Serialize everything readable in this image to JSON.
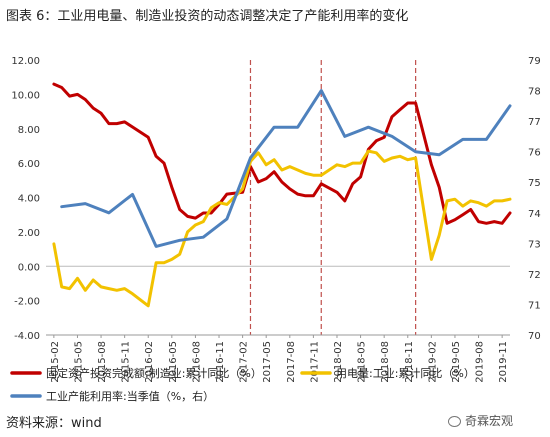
{
  "title": "图表 6：工业用电量、制造业投资的动态调整决定了产能利用率的变化",
  "source": "资料来源：wind",
  "brand": "奇霖宏观",
  "chart_data": {
    "type": "line",
    "x_ticks": [
      "2015-02",
      "2015-05",
      "2015-08",
      "2015-11",
      "2016-02",
      "2016-05",
      "2016-08",
      "2016-11",
      "2017-02",
      "2017-05",
      "2017-08",
      "2017-11",
      "2018-02",
      "2018-05",
      "2018-08",
      "2018-11",
      "2019-02",
      "2019-05",
      "2019-08",
      "2019-11"
    ],
    "x_range": [
      "2015-01",
      "2019-12"
    ],
    "yaxis_left": {
      "min": -4,
      "max": 12,
      "ticks": [
        "-4.00",
        "-2.00",
        "0.00",
        "2.00",
        "4.00",
        "6.00",
        "8.00",
        "10.00",
        "12.00"
      ]
    },
    "yaxis_right": {
      "min": 70,
      "max": 79,
      "ticks": [
        "70",
        "71",
        "72",
        "73",
        "74",
        "75",
        "76",
        "77",
        "78",
        "79"
      ]
    },
    "vlines": [
      "2017-03",
      "2017-12",
      "2018-12"
    ],
    "grid": false,
    "legend_position": "bottom",
    "series": [
      {
        "name": "固定资产投资完成额:制造业:累计同比（%）",
        "color": "#c00000",
        "axis": "left",
        "x": [
          "2015-02",
          "2015-03",
          "2015-04",
          "2015-05",
          "2015-06",
          "2015-07",
          "2015-08",
          "2015-09",
          "2015-10",
          "2015-11",
          "2015-12",
          "2016-02",
          "2016-03",
          "2016-04",
          "2016-05",
          "2016-06",
          "2016-07",
          "2016-08",
          "2016-09",
          "2016-10",
          "2016-11",
          "2016-12",
          "2017-02",
          "2017-03",
          "2017-04",
          "2017-05",
          "2017-06",
          "2017-07",
          "2017-08",
          "2017-09",
          "2017-10",
          "2017-11",
          "2017-12",
          "2018-02",
          "2018-03",
          "2018-04",
          "2018-05",
          "2018-06",
          "2018-07",
          "2018-08",
          "2018-09",
          "2018-10",
          "2018-11",
          "2018-12",
          "2019-02",
          "2019-03",
          "2019-04",
          "2019-05",
          "2019-06",
          "2019-07",
          "2019-08",
          "2019-09",
          "2019-10",
          "2019-11",
          "2019-12"
        ],
        "y": [
          10.6,
          10.4,
          9.9,
          10.0,
          9.7,
          9.2,
          8.9,
          8.3,
          8.3,
          8.4,
          8.1,
          7.5,
          6.4,
          6.0,
          4.6,
          3.3,
          2.9,
          2.8,
          3.1,
          3.1,
          3.6,
          4.2,
          4.3,
          5.8,
          4.9,
          5.1,
          5.5,
          4.9,
          4.5,
          4.2,
          4.1,
          4.1,
          4.8,
          4.3,
          3.8,
          4.8,
          5.2,
          6.8,
          7.3,
          7.5,
          8.7,
          9.1,
          9.5,
          9.5,
          5.9,
          4.6,
          2.5,
          2.7,
          3.0,
          3.3,
          2.6,
          2.5,
          2.6,
          2.5,
          3.1
        ]
      },
      {
        "name": "用电量:工业:累计同比（%）",
        "color": "#f2c200",
        "axis": "left",
        "x": [
          "2015-02",
          "2015-03",
          "2015-04",
          "2015-05",
          "2015-06",
          "2015-07",
          "2015-08",
          "2015-09",
          "2015-10",
          "2015-11",
          "2015-12",
          "2016-02",
          "2016-03",
          "2016-04",
          "2016-05",
          "2016-06",
          "2016-07",
          "2016-08",
          "2016-09",
          "2016-10",
          "2016-11",
          "2016-12",
          "2017-02",
          "2017-03",
          "2017-04",
          "2017-05",
          "2017-06",
          "2017-07",
          "2017-08",
          "2017-09",
          "2017-10",
          "2017-11",
          "2017-12",
          "2018-02",
          "2018-03",
          "2018-04",
          "2018-05",
          "2018-06",
          "2018-07",
          "2018-08",
          "2018-09",
          "2018-10",
          "2018-11",
          "2018-12",
          "2019-02",
          "2019-03",
          "2019-04",
          "2019-05",
          "2019-06",
          "2019-07",
          "2019-08",
          "2019-09",
          "2019-10",
          "2019-11",
          "2019-12"
        ],
        "y": [
          1.3,
          -1.2,
          -1.3,
          -0.7,
          -1.4,
          -0.8,
          -1.2,
          -1.3,
          -1.4,
          -1.3,
          -1.6,
          -2.3,
          0.2,
          0.2,
          0.4,
          0.7,
          2.0,
          2.4,
          2.6,
          3.4,
          3.7,
          3.6,
          4.5,
          6.1,
          6.6,
          5.9,
          6.2,
          5.6,
          5.8,
          5.6,
          5.4,
          5.3,
          5.3,
          5.9,
          5.8,
          6.0,
          6.0,
          6.7,
          6.6,
          6.1,
          6.3,
          6.4,
          6.2,
          6.3,
          0.4,
          1.8,
          3.8,
          3.9,
          3.5,
          3.8,
          3.7,
          3.5,
          3.8,
          3.8,
          3.9
        ]
      },
      {
        "name": "工业产能利用率:当季值（%，右）",
        "color": "#4e81bd",
        "axis": "right",
        "x": [
          "2015-03",
          "2015-06",
          "2015-09",
          "2015-12",
          "2016-03",
          "2016-06",
          "2016-09",
          "2016-12",
          "2017-03",
          "2017-06",
          "2017-09",
          "2017-12",
          "2018-03",
          "2018-06",
          "2018-09",
          "2018-12",
          "2019-03",
          "2019-06",
          "2019-09",
          "2019-12"
        ],
        "y": [
          74.2,
          74.3,
          74.0,
          74.6,
          72.9,
          73.1,
          73.2,
          73.8,
          75.8,
          76.8,
          76.8,
          78.0,
          76.5,
          76.8,
          76.5,
          76.0,
          75.9,
          76.4,
          76.4,
          77.5
        ]
      }
    ]
  }
}
